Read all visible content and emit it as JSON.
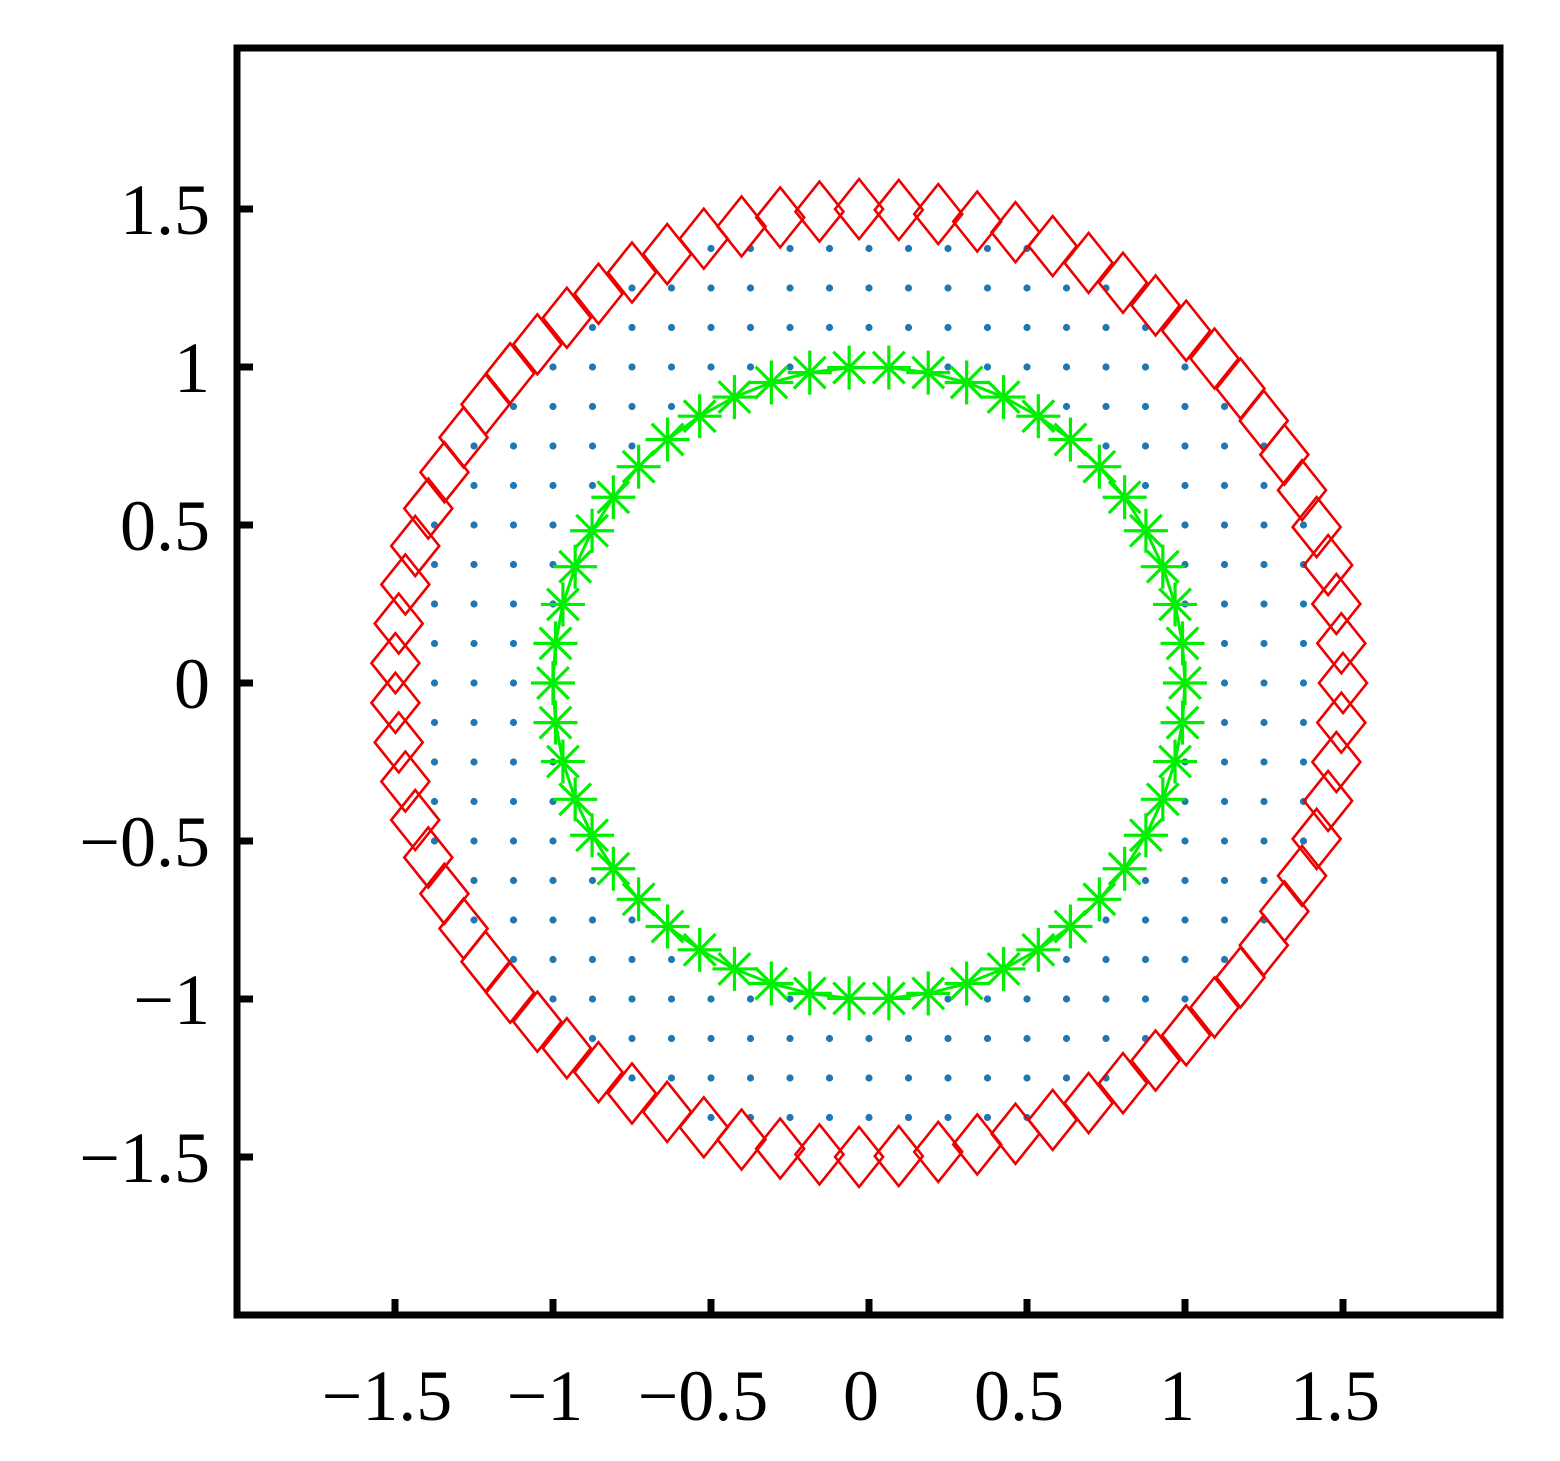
{
  "chart_data": {
    "type": "scatter",
    "title": "",
    "xlabel": "",
    "ylabel": "",
    "xlim": [
      -2,
      2
    ],
    "ylim": [
      -2,
      2
    ],
    "grid": false,
    "legend": "none",
    "x_ticks": [
      {
        "value": -1.5,
        "label": "−1.5"
      },
      {
        "value": -1,
        "label": "−1"
      },
      {
        "value": -0.5,
        "label": "−0.5"
      },
      {
        "value": 0,
        "label": "0"
      },
      {
        "value": 0.5,
        "label": "0.5"
      },
      {
        "value": 1,
        "label": "1"
      },
      {
        "value": 1.5,
        "label": "1.5"
      }
    ],
    "y_ticks": [
      {
        "value": 1.5,
        "label": "1.5"
      },
      {
        "value": 1,
        "label": "1"
      },
      {
        "value": 0.5,
        "label": "0.5"
      },
      {
        "value": 0,
        "label": "0"
      },
      {
        "value": -0.5,
        "label": "−0.5"
      },
      {
        "value": -1,
        "label": "−1"
      },
      {
        "value": -1.5,
        "label": "−1.5"
      }
    ],
    "series": [
      {
        "marker": "dot",
        "color": "#1f77b4",
        "description_rule": "grid points with spacing 0.125 lying in the annulus between inner and outer circles",
        "grid_step": 0.125,
        "annulus": [
          1.0,
          1.5
        ]
      },
      {
        "marker": "asterisk",
        "color": "#00ee00",
        "circle_radius": 1.0,
        "count": 50,
        "connected": true
      },
      {
        "marker": "diamond",
        "color": "#ee0000",
        "circle_radius": 1.5,
        "count": 75
      }
    ]
  }
}
